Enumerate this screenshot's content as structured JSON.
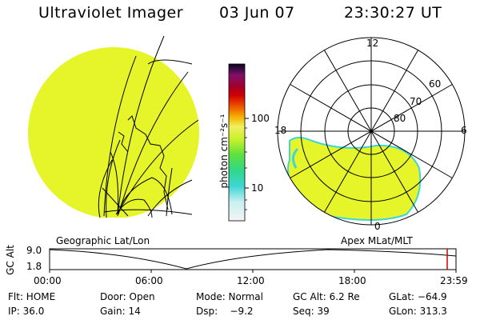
{
  "header": {
    "instrument": "Ultraviolet Imager",
    "date": "03 Jun 07",
    "time": "23:30:27 UT"
  },
  "colorbar": {
    "unit_label": "photon cm⁻²s⁻¹",
    "ticks": [
      "100",
      "10"
    ],
    "scale": "log"
  },
  "left_panel": {
    "label": "Geographic Lat/Lon",
    "fill_color": "#e6f52a"
  },
  "right_panel": {
    "label": "Apex MLat/MLT",
    "mlt_labels": {
      "top": "12",
      "left": "18",
      "right": "6",
      "bottom": "0"
    },
    "lat_labels": [
      "60",
      "70",
      "80"
    ],
    "fill_color": "#e6f52a"
  },
  "altitude_plot": {
    "ylabel": "GC Alt",
    "yticks": [
      "9.0",
      "1.8"
    ],
    "xticks": [
      "00:00",
      "06:00",
      "12:00",
      "18:00",
      "23:59"
    ],
    "current_time_marker_color": "#cc0000"
  },
  "status": {
    "row1": {
      "flt": "Flt: HOME",
      "door": "Door: Open",
      "mode": "Mode: Normal",
      "gc_alt": "GC Alt: 6.2 Re",
      "glat": "GLat: −64.9"
    },
    "row2": {
      "ip": "IP: 36.0",
      "gain": "Gain: 14",
      "dsp": "Dsp:    −9.2",
      "seq": "Seq: 39",
      "glon": "GLon: 313.3"
    }
  }
}
